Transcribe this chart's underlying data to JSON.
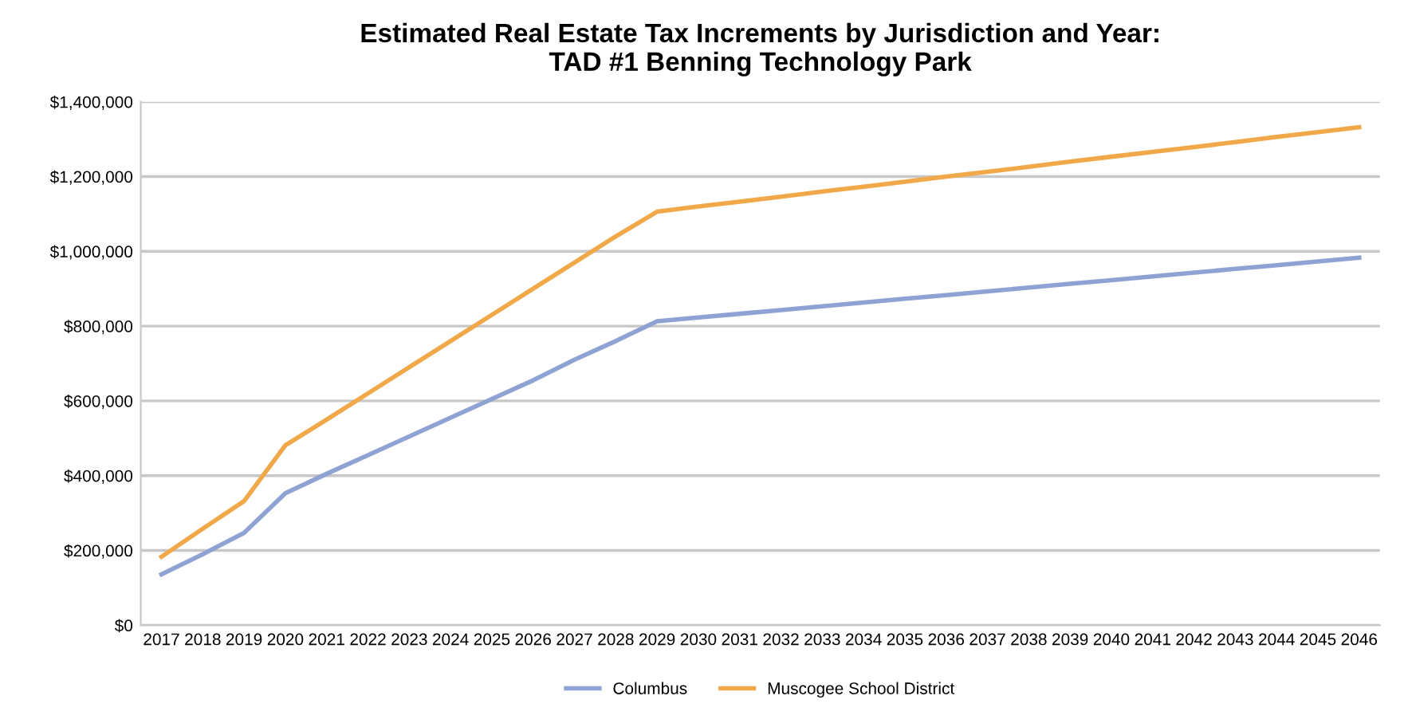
{
  "chart_data": {
    "type": "line",
    "title": "Estimated Real Estate Tax Increments by Jurisdiction and Year:\nTAD #1 Benning Technology Park",
    "categories": [
      "2017",
      "2018",
      "2019",
      "2020",
      "2021",
      "2022",
      "2023",
      "2024",
      "2025",
      "2026",
      "2027",
      "2028",
      "2029",
      "2030",
      "2031",
      "2032",
      "2033",
      "2034",
      "2035",
      "2036",
      "2037",
      "2038",
      "2039",
      "2040",
      "2041",
      "2042",
      "2043",
      "2044",
      "2045",
      "2046"
    ],
    "series": [
      {
        "name": "Columbus",
        "color": "#8fa2d4",
        "values": [
          136000,
          190000,
          247000,
          353000,
          405000,
          455000,
          505000,
          555000,
          605000,
          655000,
          710000,
          760000,
          813000,
          823000,
          833000,
          843000,
          853000,
          863000,
          873000,
          883000,
          893000,
          903000,
          913000,
          923000,
          933000,
          943000,
          953000,
          963000,
          973000,
          983000
        ]
      },
      {
        "name": "Muscogee School District",
        "color": "#f0a848",
        "values": [
          183000,
          258000,
          332000,
          481000,
          550000,
          620000,
          690000,
          760000,
          830000,
          900000,
          970000,
          1040000,
          1106000,
          1120000,
          1133000,
          1146000,
          1160000,
          1173000,
          1186000,
          1200000,
          1213000,
          1226000,
          1240000,
          1253000,
          1266000,
          1279000,
          1292000,
          1306000,
          1319000,
          1332000
        ]
      }
    ],
    "ylim": [
      0,
      1400000
    ],
    "yticks": [
      {
        "value": 0,
        "label": "$0"
      },
      {
        "value": 200000,
        "label": "$200,000"
      },
      {
        "value": 400000,
        "label": "$400,000"
      },
      {
        "value": 600000,
        "label": "$600,000"
      },
      {
        "value": 800000,
        "label": "$800,000"
      },
      {
        "value": 1000000,
        "label": "$1,000,000"
      },
      {
        "value": 1200000,
        "label": "$1,200,000"
      },
      {
        "value": 1400000,
        "label": "$1,400,000"
      }
    ],
    "grid": "y",
    "legend": "bottom",
    "marker": "none",
    "line_style": "solid"
  }
}
